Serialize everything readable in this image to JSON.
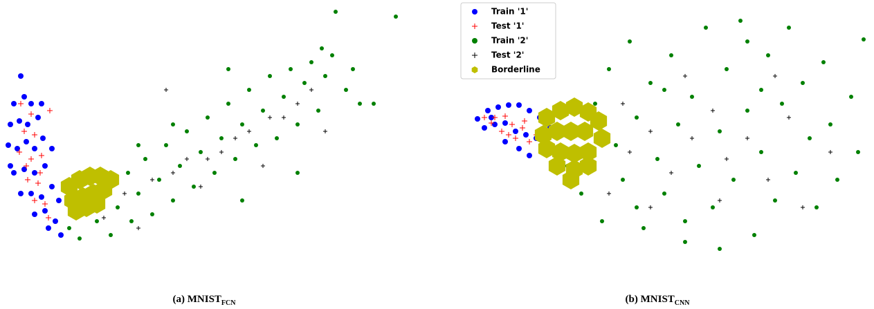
{
  "chart_data": [
    {
      "type": "scatter",
      "caption": {
        "text": "(a) MNIST",
        "sub": "FCN"
      },
      "xlim": [
        0,
        590
      ],
      "ylim": [
        370,
        0
      ],
      "series": [
        {
          "color": "#0000ff",
          "marker": "circle",
          "marker_size": 4,
          "x": [
            30,
            20,
            35,
            45,
            15,
            28,
            40,
            55,
            12,
            25,
            38,
            50,
            62,
            20,
            35,
            50,
            65,
            30,
            45,
            60,
            75,
            50,
            65,
            80,
            88,
            70,
            15,
            60,
            75,
            85
          ],
          "values": [
            110,
            150,
            140,
            150,
            180,
            175,
            180,
            170,
            210,
            215,
            205,
            215,
            200,
            250,
            245,
            250,
            240,
            280,
            280,
            285,
            270,
            310,
            305,
            320,
            340,
            330,
            240,
            150,
            215,
            290
          ]
        },
        {
          "color": "#ff0000",
          "marker": "plus",
          "marker_size": 4,
          "x": [
            30,
            45,
            35,
            50,
            28,
            45,
            60,
            40,
            55,
            50,
            65,
            70,
            72,
            38,
            58
          ],
          "values": [
            150,
            165,
            190,
            195,
            220,
            230,
            225,
            260,
            265,
            290,
            295,
            315,
            160,
            240,
            250
          ]
        },
        {
          "color": "#008000",
          "marker": "circle",
          "marker_size": 3,
          "x": [
            100,
            120,
            115,
            140,
            150,
            160,
            170,
            185,
            190,
            200,
            210,
            220,
            230,
            240,
            250,
            260,
            270,
            280,
            290,
            300,
            310,
            320,
            330,
            340,
            350,
            360,
            370,
            380,
            390,
            400,
            410,
            420,
            430,
            440,
            450,
            460,
            470,
            480,
            500,
            510,
            520,
            465,
            540,
            430,
            350,
            250,
            200,
            330,
            485,
            572
          ],
          "values": [
            330,
            300,
            345,
            320,
            280,
            340,
            300,
            250,
            320,
            280,
            230,
            310,
            260,
            210,
            290,
            240,
            190,
            270,
            220,
            170,
            250,
            200,
            150,
            230,
            180,
            130,
            210,
            160,
            110,
            200,
            140,
            100,
            180,
            120,
            90,
            160,
            110,
            80,
            130,
            100,
            150,
            70,
            150,
            250,
            290,
            180,
            210,
            100,
            17,
            24
          ]
        },
        {
          "color": "#000000",
          "marker": "plus",
          "marker_size": 3,
          "x": [
            180,
            220,
            250,
            270,
            300,
            320,
            340,
            360,
            390,
            410,
            430,
            450,
            240,
            200,
            380,
            470,
            150,
            290
          ],
          "values": [
            280,
            260,
            250,
            230,
            230,
            220,
            200,
            190,
            170,
            170,
            150,
            130,
            130,
            330,
            240,
            190,
            315,
            270
          ]
        },
        {
          "color": "#bfbf00",
          "marker": "hexagon",
          "marker_size": 14,
          "x": [
            100,
            115,
            130,
            145,
            160,
            105,
            120,
            135,
            150,
            110,
            125,
            140
          ],
          "values": [
            270,
            260,
            255,
            255,
            260,
            290,
            285,
            280,
            275,
            305,
            300,
            295
          ]
        }
      ]
    },
    {
      "type": "scatter",
      "caption": {
        "text": "(b) MNIST",
        "sub": "CNN"
      },
      "xlim": [
        0,
        623
      ],
      "ylim": [
        370,
        0
      ],
      "legend": "upper left",
      "series": [
        {
          "name": "Train '1'",
          "color": "#0000ff",
          "marker": "circle",
          "marker_size": 4,
          "x": [
            50,
            65,
            80,
            95,
            110,
            125,
            140,
            155,
            60,
            75,
            90,
            105,
            120,
            135,
            145,
            90,
            110,
            125,
            150,
            70
          ],
          "values": [
            172,
            160,
            155,
            152,
            152,
            160,
            170,
            185,
            185,
            180,
            178,
            190,
            195,
            200,
            215,
            205,
            215,
            225,
            200,
            170
          ]
        },
        {
          "name": "Test '1'",
          "color": "#ff0000",
          "marker": "plus",
          "marker_size": 4,
          "x": [
            60,
            75,
            90,
            100,
            115,
            85,
            105,
            125,
            135,
            70,
            95,
            118
          ],
          "values": [
            170,
            170,
            168,
            180,
            185,
            190,
            200,
            205,
            195,
            178,
            195,
            175
          ]
        },
        {
          "name": "Train '2'",
          "color": "#008000",
          "marker": "circle",
          "marker_size": 3,
          "x": [
            180,
            200,
            220,
            230,
            240,
            250,
            260,
            270,
            280,
            290,
            300,
            310,
            320,
            330,
            340,
            350,
            360,
            370,
            380,
            390,
            400,
            410,
            420,
            430,
            440,
            450,
            460,
            470,
            480,
            490,
            500,
            510,
            520,
            530,
            540,
            550,
            560,
            570,
            590,
            608,
            600,
            440,
            280,
            350,
            400,
            230,
            320,
            460
          ],
          "values": [
            240,
            280,
            150,
            320,
            100,
            210,
            260,
            60,
            170,
            330,
            120,
            230,
            280,
            80,
            180,
            350,
            140,
            240,
            40,
            300,
            190,
            100,
            260,
            30,
            160,
            340,
            220,
            80,
            290,
            150,
            40,
            250,
            120,
            200,
            300,
            90,
            180,
            260,
            140,
            57,
            220,
            60,
            300,
            320,
            360,
            180,
            130,
            130
          ]
        },
        {
          "name": "Test '2'",
          "color": "#000000",
          "marker": "plus",
          "marker_size": 3,
          "x": [
            240,
            270,
            300,
            330,
            360,
            390,
            410,
            440,
            470,
            500,
            520,
            350,
            300,
            560,
            400,
            480,
            260
          ],
          "values": [
            280,
            220,
            190,
            250,
            200,
            160,
            230,
            200,
            260,
            170,
            300,
            110,
            300,
            220,
            290,
            110,
            150
          ]
        },
        {
          "name": "Borderline",
          "color": "#bfbf00",
          "marker": "hexagon",
          "marker_size": 14,
          "x": [
            150,
            170,
            190,
            210,
            225,
            145,
            165,
            185,
            205,
            230,
            150,
            170,
            190,
            210,
            165,
            190,
            210,
            185
          ],
          "values": [
            170,
            160,
            155,
            162,
            175,
            195,
            190,
            190,
            190,
            200,
            215,
            220,
            222,
            220,
            240,
            245,
            240,
            260
          ]
        }
      ]
    }
  ]
}
